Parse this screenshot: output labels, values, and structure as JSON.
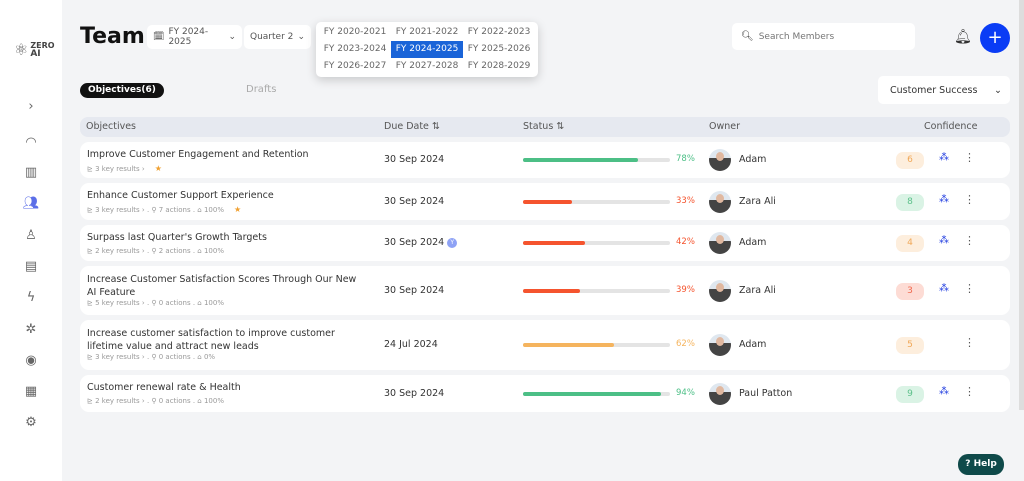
{
  "app": {
    "logo_text_1": "ZERO",
    "logo_text_2": "AI"
  },
  "sidebar": {
    "items": [
      {
        "icon": "chevron-right-icon"
      },
      {
        "icon": "gauge-icon"
      },
      {
        "icon": "building-icon"
      },
      {
        "icon": "users-icon",
        "active": true
      },
      {
        "icon": "person-icon"
      },
      {
        "icon": "document-icon"
      },
      {
        "icon": "lightning-icon"
      },
      {
        "icon": "network-icon"
      },
      {
        "icon": "eye-icon"
      },
      {
        "icon": "report-icon"
      },
      {
        "icon": "settings-icon"
      }
    ]
  },
  "header": {
    "title": "Team",
    "fiscal_year": "FY 2024-2025",
    "quarter": "Quarter 2",
    "search_placeholder": "Search Members",
    "add_label": "+"
  },
  "fy_dropdown": {
    "options": [
      "FY 2020-2021",
      "FY 2021-2022",
      "FY 2022-2023",
      "FY 2023-2024",
      "FY 2024-2025",
      "FY 2025-2026",
      "FY 2026-2027",
      "FY 2027-2028",
      "FY 2028-2029"
    ],
    "selected": "FY 2024-2025"
  },
  "tabs": {
    "objectives": "Objectives(6)",
    "drafts": "Drafts"
  },
  "team_select": "Customer Success",
  "table": {
    "headers": {
      "objectives": "Objectives",
      "due": "Due Date ⇅",
      "status": "Status ⇅",
      "owner": "Owner",
      "confidence": "Confidence"
    },
    "rows": [
      {
        "title": "Improve Customer Engagement and Retention",
        "meta": "⊵ 3 key results  ›",
        "star": true,
        "due": "30 Sep 2024",
        "progress": 78,
        "pct": "78%",
        "color": "#4cbf86",
        "owner": "Adam",
        "conf": "6",
        "conf_color": "#f0a858",
        "conf_bg": "#fdeedd",
        "net": true
      },
      {
        "title": "Enhance Customer Support Experience",
        "meta": "⊵ 3 key results  ›  .  ⚲ 7 actions  .  ⌂ 100%",
        "star": true,
        "due": "30 Sep 2024",
        "progress": 33,
        "pct": "33%",
        "color": "#f5542e",
        "owner": "Zara Ali",
        "conf": "8",
        "conf_color": "#5cc08a",
        "conf_bg": "#daf3e5",
        "net": true
      },
      {
        "title": "Surpass last Quarter's Growth Targets",
        "meta": "⊵ 2 key results  ›  .  ⚲ 2 actions  .  ⌂ 100%",
        "due": "30 Sep 2024",
        "due_badge": "Y",
        "progress": 42,
        "pct": "42%",
        "color": "#f5542e",
        "owner": "Adam",
        "conf": "4",
        "conf_color": "#f0a858",
        "conf_bg": "#fdeedd",
        "net": true
      },
      {
        "title": "Increase Customer Satisfaction Scores Through Our New AI Feature",
        "meta": "⊵ 5 key results  ›  .  ⚲ 0 actions  .  ⌂ 100%",
        "due": "30 Sep 2024",
        "progress": 39,
        "pct": "39%",
        "color": "#f5542e",
        "owner": "Zara Ali",
        "conf": "3",
        "conf_color": "#f06a50",
        "conf_bg": "#fddcd5",
        "net": true
      },
      {
        "title": "Increase customer satisfaction to improve customer lifetime value and attract new leads",
        "meta": "⊵ 3 key results  ›  .  ⚲ 0 actions  .  ⌂ 0%",
        "due": "24 Jul 2024",
        "progress": 62,
        "pct": "62%",
        "color": "#f5b45e",
        "owner": "Adam",
        "conf": "5",
        "conf_color": "#f0a858",
        "conf_bg": "#fdeedd",
        "net": false
      },
      {
        "title": "Customer renewal rate & Health",
        "meta": "⊵ 2 key results  ›  .  ⚲ 0 actions  .  ⌂ 100%",
        "due": "30 Sep 2024",
        "progress": 94,
        "pct": "94%",
        "color": "#4cbf86",
        "owner": "Paul Patton",
        "conf": "9",
        "conf_color": "#5cc08a",
        "conf_bg": "#daf3e5",
        "net": true
      }
    ]
  },
  "help_label": "Help"
}
